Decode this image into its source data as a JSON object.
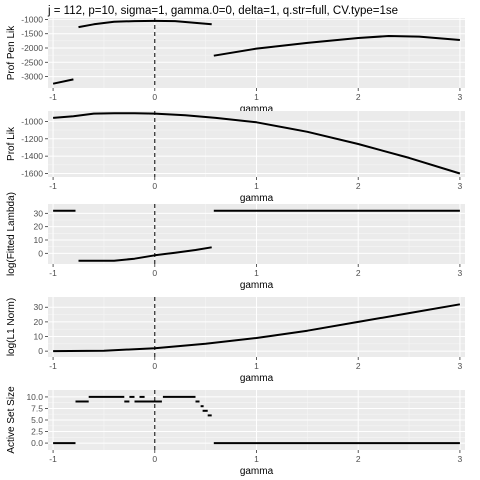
{
  "title": "j = 112, p=10, sigma=1, gamma.0=0, delta=1, q.str=full, CV.type=1se",
  "chart_data": [
    {
      "type": "line",
      "xlabel": "gamma",
      "ylabel": "Prof Pen Lik",
      "xlim": [
        -1.05,
        3.05
      ],
      "ylim": [
        -3400,
        -950
      ],
      "xticks": [
        -1,
        0,
        1,
        2,
        3
      ],
      "xtick_labels": [
        "-1",
        "0",
        "1",
        "2",
        "3"
      ],
      "yticks": [
        -3000,
        -2500,
        -2000,
        -1500,
        -1000
      ],
      "ytick_labels": [
        "-3000",
        "-2500",
        "-2000",
        "-1500",
        "-1000"
      ],
      "vline_x": 0,
      "segments": [
        [
          [
            -1,
            -3250
          ],
          [
            -0.8,
            -3100
          ]
        ],
        [
          [
            -0.75,
            -1270
          ],
          [
            -0.6,
            -1170
          ],
          [
            -0.4,
            -1080
          ],
          [
            -0.2,
            -1060
          ],
          [
            0,
            -1050
          ],
          [
            0.2,
            -1060
          ],
          [
            0.4,
            -1120
          ],
          [
            0.56,
            -1170
          ]
        ],
        [
          [
            0.58,
            -2270
          ],
          [
            1,
            -2020
          ],
          [
            1.5,
            -1820
          ],
          [
            2,
            -1650
          ],
          [
            2.3,
            -1580
          ],
          [
            2.6,
            -1600
          ],
          [
            3,
            -1720
          ]
        ]
      ]
    },
    {
      "type": "line",
      "xlabel": "gamma",
      "ylabel": "Prof Lik",
      "xlim": [
        -1.05,
        3.05
      ],
      "ylim": [
        -1640,
        -880
      ],
      "xticks": [
        -1,
        0,
        1,
        2,
        3
      ],
      "xtick_labels": [
        "-1",
        "0",
        "1",
        "2",
        "3"
      ],
      "yticks": [
        -1600,
        -1400,
        -1200,
        -1000
      ],
      "ytick_labels": [
        "-1600",
        "-1400",
        "-1200",
        "-1000"
      ],
      "vline_x": 0,
      "segments": [
        [
          [
            -1,
            -960
          ],
          [
            -0.8,
            -940
          ],
          [
            -0.6,
            -910
          ],
          [
            -0.4,
            -905
          ],
          [
            -0.2,
            -905
          ],
          [
            0,
            -910
          ],
          [
            0.3,
            -930
          ],
          [
            0.6,
            -960
          ],
          [
            1,
            -1010
          ],
          [
            1.5,
            -1120
          ],
          [
            2,
            -1260
          ],
          [
            2.5,
            -1420
          ],
          [
            3,
            -1600
          ]
        ]
      ]
    },
    {
      "type": "line",
      "xlabel": "gamma",
      "ylabel": "log(Fitted Lambda)",
      "xlim": [
        -1.05,
        3.05
      ],
      "ylim": [
        -8,
        37
      ],
      "xticks": [
        -1,
        0,
        1,
        2,
        3
      ],
      "xtick_labels": [
        "-1",
        "0",
        "1",
        "2",
        "3"
      ],
      "yticks": [
        0,
        10,
        20,
        30
      ],
      "ytick_labels": [
        "0",
        "10",
        "20",
        "30"
      ],
      "vline_x": 0,
      "segments": [
        [
          [
            -1,
            32
          ],
          [
            -0.78,
            32
          ]
        ],
        [
          [
            -0.75,
            -5.5
          ],
          [
            -0.4,
            -5.5
          ],
          [
            -0.2,
            -4
          ],
          [
            0,
            -1.5
          ],
          [
            0.2,
            0.5
          ],
          [
            0.4,
            2.5
          ],
          [
            0.56,
            4.5
          ]
        ],
        [
          [
            0.58,
            32
          ],
          [
            3,
            32
          ]
        ]
      ]
    },
    {
      "type": "line",
      "xlabel": "gamma",
      "ylabel": "log(L1 Norm)",
      "xlim": [
        -1.05,
        3.05
      ],
      "ylim": [
        -4,
        37
      ],
      "xticks": [
        -1,
        0,
        1,
        2,
        3
      ],
      "xtick_labels": [
        "-1",
        "0",
        "1",
        "2",
        "3"
      ],
      "yticks": [
        0,
        10,
        20,
        30
      ],
      "ytick_labels": [
        "0",
        "10",
        "20",
        "30"
      ],
      "vline_x": 0,
      "segments": [
        [
          [
            -1,
            0
          ],
          [
            -0.5,
            0.3
          ],
          [
            0,
            2
          ],
          [
            0.5,
            5
          ],
          [
            1,
            9
          ],
          [
            1.5,
            14
          ],
          [
            2,
            20
          ],
          [
            2.5,
            26
          ],
          [
            3,
            32
          ]
        ]
      ]
    },
    {
      "type": "line",
      "xlabel": "gamma",
      "ylabel": "Active Set Size",
      "xlim": [
        -1.05,
        3.05
      ],
      "ylim": [
        -1.5,
        11.5
      ],
      "xticks": [
        -1,
        0,
        1,
        2,
        3
      ],
      "xtick_labels": [
        "-1",
        "0",
        "1",
        "2",
        "3"
      ],
      "yticks": [
        0,
        2.5,
        5,
        7.5,
        10
      ],
      "ytick_labels": [
        "0.0",
        "2.5",
        "5.0",
        "7.5",
        "10.0"
      ],
      "vline_x": 0,
      "segments": [
        [
          [
            -1,
            0
          ],
          [
            -0.78,
            0
          ]
        ],
        [
          [
            -0.78,
            9
          ],
          [
            -0.65,
            9
          ]
        ],
        [
          [
            -0.65,
            10
          ],
          [
            -0.3,
            10
          ]
        ],
        [
          [
            -0.3,
            9
          ],
          [
            -0.25,
            9
          ]
        ],
        [
          [
            -0.25,
            10
          ],
          [
            -0.2,
            10
          ]
        ],
        [
          [
            -0.2,
            9
          ],
          [
            -0.15,
            9
          ]
        ],
        [
          [
            -0.15,
            10
          ],
          [
            -0.1,
            10
          ]
        ],
        [
          [
            -0.15,
            9
          ],
          [
            0.07,
            9
          ]
        ],
        [
          [
            0.08,
            10
          ],
          [
            0.4,
            10
          ]
        ],
        [
          [
            0.4,
            9
          ],
          [
            0.44,
            9
          ]
        ],
        [
          [
            0.45,
            8
          ],
          [
            0.48,
            8
          ]
        ],
        [
          [
            0.47,
            7
          ],
          [
            0.52,
            7
          ]
        ],
        [
          [
            0.52,
            6
          ],
          [
            0.56,
            6
          ]
        ],
        [
          [
            0.58,
            0
          ],
          [
            3,
            0
          ]
        ]
      ]
    }
  ]
}
